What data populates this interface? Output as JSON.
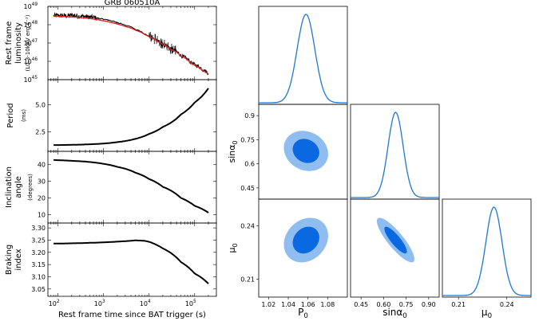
{
  "chart_data": [
    {
      "type": "line",
      "panel": "luminosity",
      "title": "GRB 060510A",
      "ylabel": [
        "Rest frame",
        "luminosity",
        "(L0.3-10keV erg s⁻¹)"
      ],
      "ylabel_lines": [
        "Rest frame",
        "luminosity"
      ],
      "ylabel_unit": "(L0.3-10keV erg s⁻¹)",
      "xscale": "log",
      "yscale": "log",
      "xlim": [
        60,
        300000
      ],
      "ylim": [
        1e+45,
        1e+49
      ],
      "yticks": [
        {
          "base": "10",
          "exp": "49",
          "v": 1e+49
        },
        {
          "base": "10",
          "exp": "48",
          "v": 1e+48
        },
        {
          "base": "10",
          "exp": "47",
          "v": 1e+47
        },
        {
          "base": "10",
          "exp": "46",
          "v": 1e+46
        },
        {
          "base": "10",
          "exp": "45",
          "v": 1e+45
        }
      ],
      "series": [
        {
          "name": "data",
          "color": "#000000",
          "x": [
            80,
            100,
            150,
            200,
            300,
            500,
            800,
            1000,
            1500,
            2000,
            3000,
            5000,
            8000,
            10000,
            15000,
            20000,
            30000,
            50000,
            80000,
            100000,
            150000,
            200000
          ],
          "y": [
            3e+48,
            3.2e+48,
            3e+48,
            3.3e+48,
            2.9e+48,
            2.6e+48,
            2.2e+48,
            2e+48,
            1.6e+48,
            1.3e+48,
            9.5e+47,
            5.5e+47,
            3e+47,
            2.3e+47,
            1.3e+47,
            8.5e+46,
            4.8e+46,
            2e+46,
            9e+45,
            6.5e+45,
            3.5e+45,
            2.2e+45
          ]
        },
        {
          "name": "model",
          "color": "#d62728",
          "x": [
            80,
            100,
            150,
            200,
            300,
            500,
            800,
            1000,
            1500,
            2000,
            3000,
            5000,
            8000,
            10000,
            15000,
            20000,
            30000,
            50000,
            80000,
            100000,
            150000,
            200000
          ],
          "y": [
            2.9e+48,
            2.85e+48,
            2.75e+48,
            2.65e+48,
            2.45e+48,
            2.15e+48,
            1.8e+48,
            1.62e+48,
            1.3e+48,
            1.08e+48,
            8e+47,
            5e+47,
            2.9e+47,
            2.2e+47,
            1.25e+47,
            8.2e+46,
            4.4e+46,
            1.9e+46,
            8.5e+45,
            6e+45,
            3.2e+45,
            2e+45
          ]
        }
      ]
    },
    {
      "type": "line",
      "panel": "period",
      "ylabel": "Period",
      "ylabel_unit": "(ms)",
      "xscale": "log",
      "xlim": [
        60,
        300000
      ],
      "ylim": [
        0.7,
        7.3
      ],
      "yticks": [
        "2.5",
        "5.0"
      ],
      "ytick_values": [
        2.5,
        5.0
      ],
      "series": [
        {
          "name": "period",
          "color": "#000000",
          "x": [
            80,
            100,
            200,
            500,
            1000,
            2000,
            5000,
            10000,
            20000,
            50000,
            100000,
            200000
          ],
          "y": [
            1.28,
            1.28,
            1.3,
            1.35,
            1.42,
            1.55,
            1.85,
            2.3,
            2.95,
            4.1,
            5.2,
            6.5
          ]
        }
      ]
    },
    {
      "type": "line",
      "panel": "inclination",
      "ylabel": [
        "Inclination",
        "angle"
      ],
      "ylabel_unit": "(degrees)",
      "xscale": "log",
      "xlim": [
        60,
        300000
      ],
      "ylim": [
        5,
        48
      ],
      "yticks": [
        "40",
        "30",
        "20",
        "10"
      ],
      "ytick_values": [
        40,
        30,
        20,
        10
      ],
      "series": [
        {
          "name": "inclination",
          "color": "#000000",
          "x": [
            80,
            100,
            200,
            500,
            1000,
            2000,
            5000,
            10000,
            20000,
            50000,
            100000,
            200000
          ],
          "y": [
            42.8,
            42.7,
            42.3,
            41.6,
            40.5,
            38.7,
            35.2,
            31.4,
            26.7,
            20.0,
            15.3,
            11.2
          ]
        }
      ]
    },
    {
      "type": "line",
      "panel": "braking",
      "ylabel": [
        "Braking",
        "index"
      ],
      "xscale": "log",
      "xlim": [
        60,
        300000
      ],
      "ylim": [
        3.02,
        3.32
      ],
      "xlabel": "Rest frame time since BAT trigger (s)",
      "xticks": [
        {
          "base": "10",
          "exp": "2",
          "v": 100
        },
        {
          "base": "10",
          "exp": "3",
          "v": 1000
        },
        {
          "base": "10",
          "exp": "4",
          "v": 10000
        },
        {
          "base": "10",
          "exp": "5",
          "v": 100000
        }
      ],
      "yticks": [
        "3.30",
        "3.25",
        "3.20",
        "3.15",
        "3.10",
        "3.05"
      ],
      "ytick_values": [
        3.3,
        3.25,
        3.2,
        3.15,
        3.1,
        3.05
      ],
      "series": [
        {
          "name": "braking",
          "color": "#000000",
          "x": [
            80,
            100,
            200,
            500,
            1000,
            2000,
            5000,
            8000,
            10000,
            20000,
            50000,
            100000,
            200000
          ],
          "y": [
            3.236,
            3.236,
            3.237,
            3.239,
            3.241,
            3.244,
            3.249,
            3.247,
            3.243,
            3.216,
            3.16,
            3.113,
            3.072
          ]
        }
      ]
    },
    {
      "type": "corner",
      "parameters": [
        {
          "symbol": "P",
          "sub": "0",
          "range": [
            1.01,
            1.1
          ],
          "ticks": [
            "1.02",
            "1.04",
            "1.06",
            "1.08"
          ],
          "tick_values": [
            1.02,
            1.04,
            1.06,
            1.08
          ],
          "mean": 1.058,
          "sigma": 0.009
        },
        {
          "symbol": "sinα",
          "sub": "0",
          "range": [
            0.38,
            0.97
          ],
          "ticks": [
            "0.45",
            "0.6",
            "0.75",
            "0.9"
          ],
          "tick_values": [
            0.45,
            0.6,
            0.75,
            0.9
          ],
          "ticks_x": [
            "0.45",
            "0.60",
            "0.75",
            "0.90"
          ],
          "mean": 0.68,
          "sigma": 0.05
        },
        {
          "symbol": "μ",
          "sub": "0",
          "range": [
            0.2,
            0.255
          ],
          "ticks": [
            "0.21",
            "0.24"
          ],
          "tick_values": [
            0.21,
            0.24
          ],
          "ticks_x": [
            "0.21",
            "0.24"
          ],
          "mean": 0.232,
          "sigma": 0.005
        }
      ],
      "correlations": {
        "sin_P": -0.15,
        "mu_P": 0.2,
        "mu_sin": -0.85
      },
      "colors": {
        "line": "#1f77d4",
        "inner": "#0a68e0",
        "outer": "#90bdf0"
      }
    }
  ]
}
